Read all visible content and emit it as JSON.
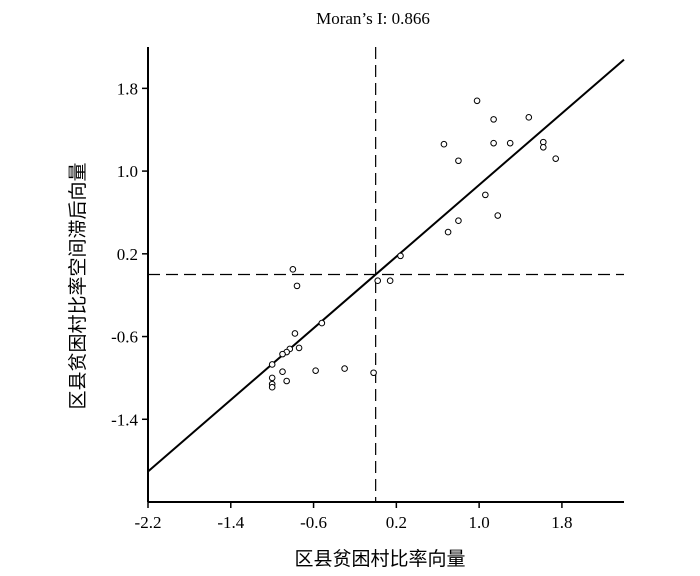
{
  "chart_data": {
    "type": "scatter",
    "title": "Moran’s I: 0.866",
    "xlabel": "区县贫困村比率向量",
    "ylabel": "区县贫困村比率空间滞后向量",
    "xlim": [
      -2.2,
      2.4
    ],
    "ylim": [
      -2.2,
      2.2
    ],
    "xticks": [
      -2.2,
      -1.4,
      -0.6,
      0.2,
      1.0,
      1.8
    ],
    "xtick_labels": [
      "-2.2",
      "-1.4",
      "-0.6",
      "0.2",
      "1.0",
      "1.8"
    ],
    "yticks": [
      -1.4,
      -0.6,
      0.2,
      1.0,
      1.8
    ],
    "ytick_labels": [
      "-1.4",
      "-0.6",
      "0.2",
      "1.0",
      "1.8"
    ],
    "reference_x": 0.0,
    "reference_y": 0.0,
    "fit_line": {
      "slope": 0.866,
      "intercept": 0.0
    },
    "grid": false,
    "points": [
      {
        "x": 0.66,
        "y": 1.26
      },
      {
        "x": 0.8,
        "y": 1.1
      },
      {
        "x": 0.98,
        "y": 1.68
      },
      {
        "x": 1.14,
        "y": 1.5
      },
      {
        "x": 1.14,
        "y": 1.27
      },
      {
        "x": 1.3,
        "y": 1.27
      },
      {
        "x": 1.48,
        "y": 1.52
      },
      {
        "x": 1.62,
        "y": 1.28
      },
      {
        "x": 1.62,
        "y": 1.23
      },
      {
        "x": 1.74,
        "y": 1.12
      },
      {
        "x": 1.06,
        "y": 0.77
      },
      {
        "x": 1.18,
        "y": 0.57
      },
      {
        "x": 0.8,
        "y": 0.52
      },
      {
        "x": 0.7,
        "y": 0.41
      },
      {
        "x": 0.24,
        "y": 0.18
      },
      {
        "x": 0.14,
        "y": -0.06
      },
      {
        "x": 0.02,
        "y": -0.06
      },
      {
        "x": -0.8,
        "y": 0.05
      },
      {
        "x": -0.76,
        "y": -0.11
      },
      {
        "x": -0.52,
        "y": -0.47
      },
      {
        "x": -0.78,
        "y": -0.57
      },
      {
        "x": -0.74,
        "y": -0.71
      },
      {
        "x": -0.83,
        "y": -0.72
      },
      {
        "x": -0.86,
        "y": -0.75
      },
      {
        "x": -0.9,
        "y": -0.77
      },
      {
        "x": -1.0,
        "y": -0.87
      },
      {
        "x": -0.9,
        "y": -0.94
      },
      {
        "x": -0.86,
        "y": -1.03
      },
      {
        "x": -1.0,
        "y": -1.0
      },
      {
        "x": -1.0,
        "y": -1.06
      },
      {
        "x": -1.0,
        "y": -1.09
      },
      {
        "x": -0.58,
        "y": -0.93
      },
      {
        "x": -0.3,
        "y": -0.91
      },
      {
        "x": -0.02,
        "y": -0.95
      }
    ]
  }
}
